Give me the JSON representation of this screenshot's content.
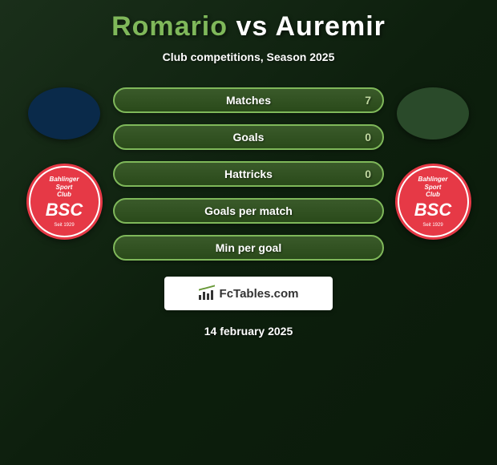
{
  "title": {
    "player1": "Romario",
    "vs": "vs",
    "player2": "Auremir",
    "player1_color": "#7fb85a",
    "vs_color": "#ffffff",
    "player2_color": "#ffffff"
  },
  "subtitle": "Club competitions, Season 2025",
  "club": {
    "line1": "Bahlinger",
    "line2": "Sport",
    "line3": "Club",
    "abbrev": "BSC",
    "year": "Seit 1929",
    "bg_color": "#e63946",
    "text_color": "#ffffff"
  },
  "stats": [
    {
      "label": "Matches",
      "value": "7"
    },
    {
      "label": "Goals",
      "value": "0"
    },
    {
      "label": "Hattricks",
      "value": "0"
    },
    {
      "label": "Goals per match",
      "value": ""
    },
    {
      "label": "Min per goal",
      "value": ""
    }
  ],
  "stat_style": {
    "border_color": "#7fb85a",
    "bg_gradient_top": "#3a5a2a",
    "bg_gradient_bottom": "#2a4a1a",
    "label_color": "#ffffff",
    "value_color": "#c0d8a0"
  },
  "footer": {
    "brand": "FcTables.com",
    "bg_color": "#ffffff",
    "text_color": "#333333"
  },
  "date": "14 february 2025",
  "page": {
    "bg_color": "#0d1f0d"
  }
}
